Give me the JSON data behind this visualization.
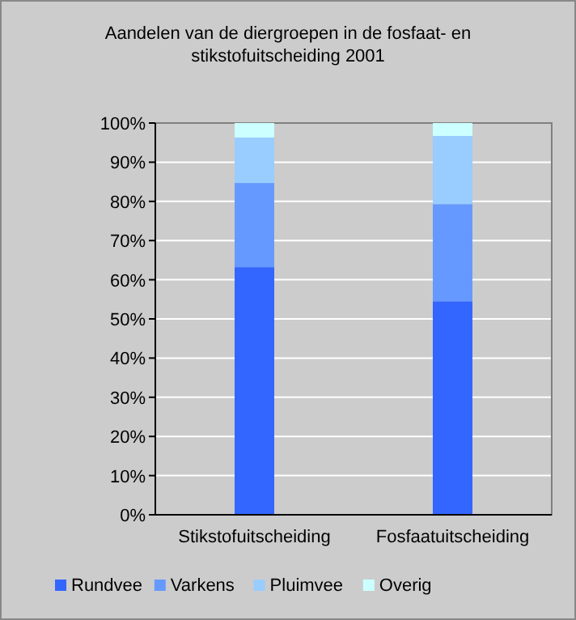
{
  "chart_data": {
    "type": "bar",
    "title": "Aandelen van de diergroepen in de fosfaat- en stikstofuitscheiding 2001",
    "categories": [
      "Stikstofuitscheiding",
      "Fosfaatuitscheiding"
    ],
    "stacked": true,
    "series": [
      {
        "name": "Rundvee",
        "color": "#3366ff",
        "values": [
          63.2,
          54.5
        ]
      },
      {
        "name": "Varkens",
        "color": "#6699ff",
        "values": [
          21.5,
          24.8
        ]
      },
      {
        "name": "Pluimvee",
        "color": "#99ccff",
        "values": [
          11.6,
          17.4
        ]
      },
      {
        "name": "Overig",
        "color": "#ccffff",
        "values": [
          3.7,
          3.3
        ]
      }
    ],
    "ylim": [
      0,
      100
    ],
    "yticks": [
      {
        "value": 0,
        "label": "0%"
      },
      {
        "value": 10,
        "label": "10%"
      },
      {
        "value": 20,
        "label": "20%"
      },
      {
        "value": 30,
        "label": "30%"
      },
      {
        "value": 40,
        "label": "40%"
      },
      {
        "value": 50,
        "label": "50%"
      },
      {
        "value": 60,
        "label": "60%"
      },
      {
        "value": 70,
        "label": "70%"
      },
      {
        "value": 80,
        "label": "80%"
      },
      {
        "value": 90,
        "label": "90%"
      },
      {
        "value": 100,
        "label": "100%"
      }
    ],
    "grid": "y",
    "legend": "bottom"
  }
}
